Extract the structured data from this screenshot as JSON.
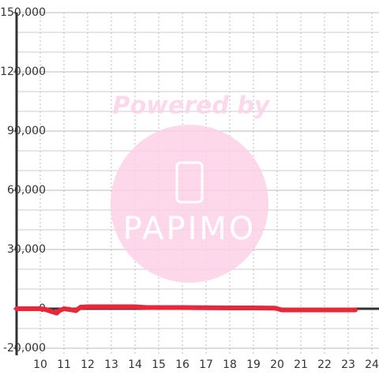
{
  "chart_data": {
    "type": "line",
    "x": [
      9,
      9.5,
      10,
      10.2,
      10.5,
      10.7,
      10.8,
      11,
      11.3,
      11.5,
      11.7,
      12,
      13,
      14,
      14.5,
      15,
      16,
      17,
      18,
      19,
      19.9,
      20.2,
      21,
      22,
      23,
      23.3
    ],
    "series": [
      {
        "name": null,
        "color": "#e8283a",
        "values": [
          0,
          0,
          0,
          -300,
          -1500,
          -2200,
          -1000,
          0,
          -500,
          -1000,
          800,
          1000,
          1000,
          1000,
          600,
          600,
          600,
          500,
          400,
          400,
          300,
          -600,
          -600,
          -600,
          -600,
          -600
        ]
      }
    ],
    "xlim": [
      9,
      24.3
    ],
    "xticks": [
      10,
      11,
      12,
      13,
      14,
      15,
      16,
      17,
      18,
      19,
      20,
      21,
      22,
      23,
      24
    ],
    "ylim": [
      -20000,
      150000
    ],
    "yticks": [
      {
        "value": -20000,
        "label": "-20,000"
      },
      0,
      {
        "value": 30000,
        "label": "30,000"
      },
      {
        "value": 60000,
        "label": "60,000"
      },
      {
        "value": 90000,
        "label": "90,000"
      },
      {
        "value": 120000,
        "label": "120,000"
      },
      {
        "value": 150000,
        "label": "150,000"
      }
    ],
    "yminorticks": [
      -10000,
      10000,
      20000,
      40000,
      50000,
      70000,
      80000,
      100000,
      110000,
      130000,
      140000
    ],
    "grid": true
  },
  "watermark": {
    "text": "Powered by",
    "logo": "PAPIMO"
  }
}
